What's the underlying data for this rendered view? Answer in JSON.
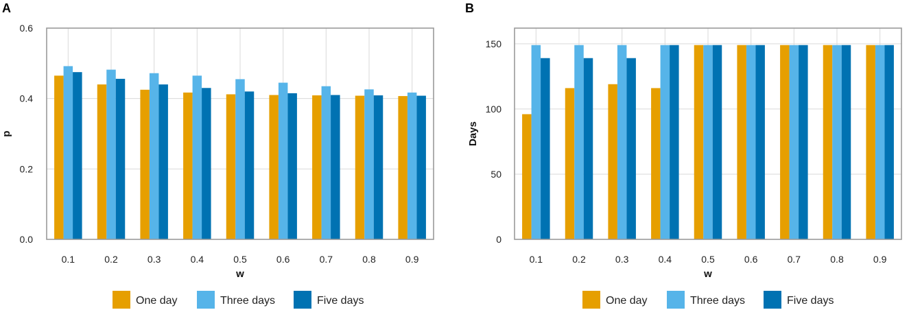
{
  "chart_data": [
    {
      "panel": "A",
      "type": "bar",
      "title": "",
      "xlabel": "w",
      "ylabel": "p",
      "categories": [
        "0.1",
        "0.2",
        "0.3",
        "0.4",
        "0.5",
        "0.6",
        "0.7",
        "0.8",
        "0.9"
      ],
      "ylim": [
        0,
        0.6
      ],
      "yticks": [
        0.0,
        0.2,
        0.4,
        0.6
      ],
      "ytick_labels": [
        "0.0",
        "0.2",
        "0.4",
        "0.6"
      ],
      "grid": true,
      "legend_position": "bottom",
      "series": [
        {
          "name": "One day",
          "color": "#E69F00",
          "values": [
            0.465,
            0.44,
            0.425,
            0.417,
            0.412,
            0.41,
            0.409,
            0.408,
            0.407
          ]
        },
        {
          "name": "Three days",
          "color": "#56B4E9",
          "values": [
            0.492,
            0.482,
            0.472,
            0.465,
            0.455,
            0.445,
            0.435,
            0.426,
            0.417
          ]
        },
        {
          "name": "Five days",
          "color": "#0072B2",
          "values": [
            0.475,
            0.456,
            0.44,
            0.43,
            0.42,
            0.415,
            0.41,
            0.409,
            0.408
          ]
        }
      ]
    },
    {
      "panel": "B",
      "type": "bar",
      "title": "",
      "xlabel": "w",
      "ylabel": "Days",
      "categories": [
        "0.1",
        "0.2",
        "0.3",
        "0.4",
        "0.5",
        "0.6",
        "0.7",
        "0.8",
        "0.9"
      ],
      "ylim": [
        0,
        162
      ],
      "yticks": [
        0,
        50,
        100,
        150
      ],
      "ytick_labels": [
        "0",
        "50",
        "100",
        "150"
      ],
      "grid": true,
      "legend_position": "bottom",
      "series": [
        {
          "name": "One day",
          "color": "#E69F00",
          "values": [
            96,
            116,
            119,
            116,
            149,
            149,
            149,
            149,
            149
          ]
        },
        {
          "name": "Three days",
          "color": "#56B4E9",
          "values": [
            149,
            149,
            149,
            149,
            149,
            149,
            149,
            149,
            149
          ]
        },
        {
          "name": "Five days",
          "color": "#0072B2",
          "values": [
            139,
            139,
            139,
            149,
            149,
            149,
            149,
            149,
            149
          ]
        }
      ]
    }
  ]
}
